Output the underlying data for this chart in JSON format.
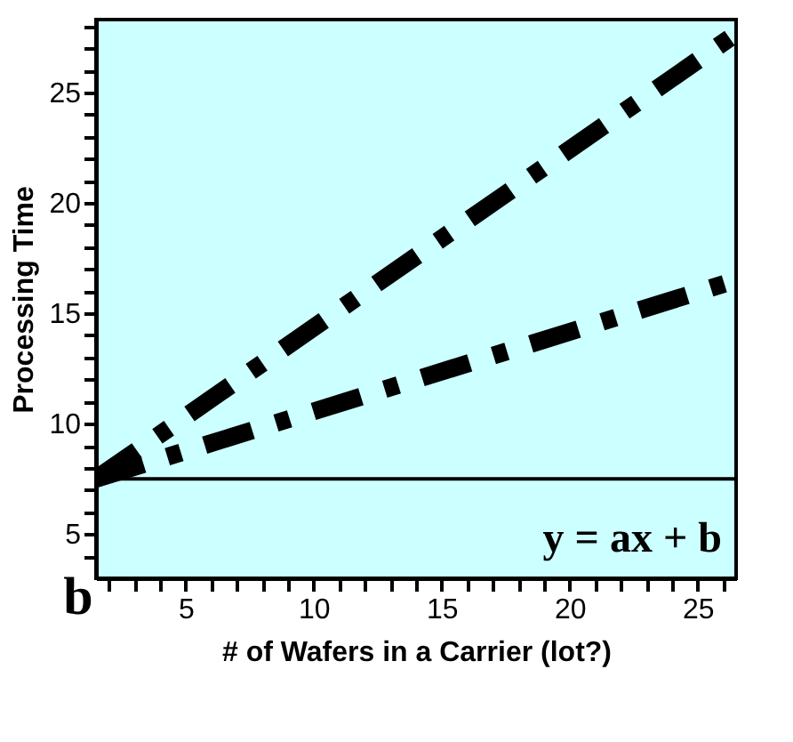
{
  "chart_data": {
    "type": "line",
    "xlabel": "# of Wafers in a Carrier (lot?)",
    "ylabel": "Processing Time",
    "series": [
      {
        "x": [
          1.5,
          26.3
        ],
        "values": [
          7.5,
          27.5
        ],
        "color": "#000000"
      },
      {
        "x": [
          1.5,
          26.5
        ],
        "values": [
          7.5,
          16.5
        ],
        "color": "#000000"
      }
    ],
    "line_style": "dashed",
    "marker": "none",
    "grid": false,
    "ref_lines": [
      {
        "axis": "y",
        "value": 7.5,
        "color": "#000000"
      }
    ],
    "annotations": [
      "y = ax + b",
      "b"
    ],
    "xlim": [
      1.5,
      26.5
    ],
    "ylim": [
      3,
      28.3
    ],
    "xticks": [
      {
        "value": 2,
        "label": null
      },
      {
        "value": 3,
        "label": null
      },
      {
        "value": 4,
        "label": null
      },
      5,
      {
        "value": 6,
        "label": null
      },
      {
        "value": 7,
        "label": null
      },
      {
        "value": 8,
        "label": null
      },
      {
        "value": 9,
        "label": null
      },
      10,
      {
        "value": 11,
        "label": null
      },
      {
        "value": 12,
        "label": null
      },
      {
        "value": 13,
        "label": null
      },
      {
        "value": 14,
        "label": null
      },
      15,
      {
        "value": 16,
        "label": null
      },
      {
        "value": 17,
        "label": null
      },
      {
        "value": 18,
        "label": null
      },
      {
        "value": 19,
        "label": null
      },
      20,
      {
        "value": 21,
        "label": null
      },
      {
        "value": 22,
        "label": null
      },
      {
        "value": 23,
        "label": null
      },
      {
        "value": 24,
        "label": null
      },
      25,
      {
        "value": 26,
        "label": null
      }
    ],
    "yticks": [
      {
        "value": 4,
        "label": null
      },
      5,
      {
        "value": 6,
        "label": null
      },
      {
        "value": 7,
        "label": null
      },
      {
        "value": 8,
        "label": null
      },
      {
        "value": 9,
        "label": null
      },
      10,
      {
        "value": 11,
        "label": null
      },
      {
        "value": 12,
        "label": null
      },
      {
        "value": 13,
        "label": null
      },
      {
        "value": 14,
        "label": null
      },
      15,
      {
        "value": 16,
        "label": null
      },
      {
        "value": 17,
        "label": null
      },
      {
        "value": 18,
        "label": null
      },
      {
        "value": 19,
        "label": null
      },
      20,
      {
        "value": 21,
        "label": null
      },
      {
        "value": 22,
        "label": null
      },
      {
        "value": 23,
        "label": null
      },
      {
        "value": 24,
        "label": null
      },
      25,
      {
        "value": 26,
        "label": null
      },
      {
        "value": 27,
        "label": null
      },
      {
        "value": 28,
        "label": null
      }
    ]
  }
}
